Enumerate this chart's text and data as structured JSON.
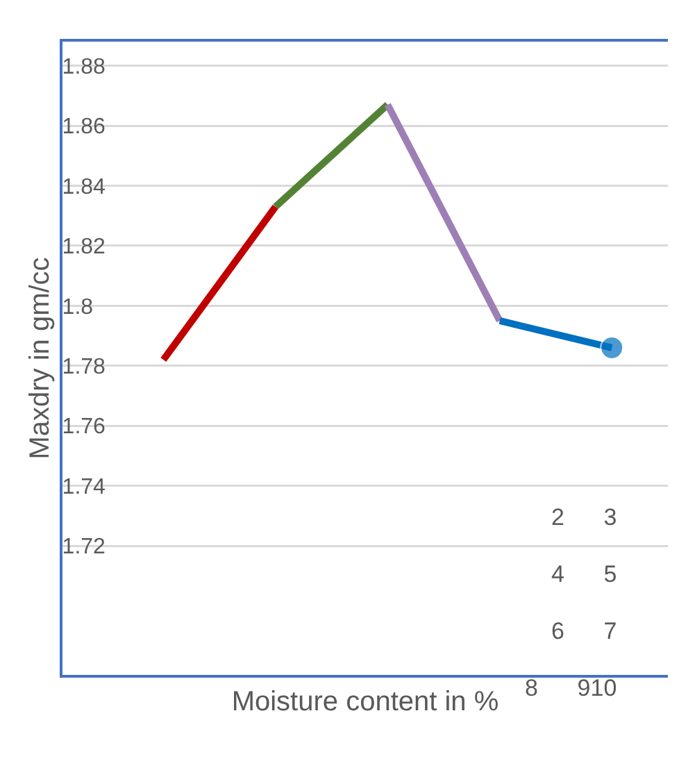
{
  "chart_data": {
    "type": "line",
    "ylabel": "Maxdry in gm/cc",
    "xlabel": "Moisture content in %",
    "categories": [
      null,
      null,
      null,
      null,
      null
    ],
    "series": [
      {
        "color": "#c00000",
        "values": [
          1.782,
          1.833,
          null,
          null,
          null
        ],
        "marker": "none"
      },
      {
        "color": "#548235",
        "values": [
          null,
          1.833,
          1.867,
          null,
          null
        ],
        "marker": "none"
      },
      {
        "color": "#9e7fb5",
        "values": [
          null,
          null,
          1.867,
          1.795,
          null
        ],
        "marker": "none"
      },
      {
        "color": "#0070c0",
        "values": [
          null,
          null,
          null,
          1.795,
          1.786
        ],
        "marker": "circle"
      }
    ],
    "ylim": [
      1.677,
      1.888
    ],
    "yticks": [
      1.72,
      1.74,
      1.76,
      1.78,
      1.8,
      1.82,
      1.84,
      1.86,
      1.88
    ],
    "grid": "y",
    "annotations": [
      "2  3",
      "4  5",
      "6  7",
      "8  910"
    ]
  }
}
